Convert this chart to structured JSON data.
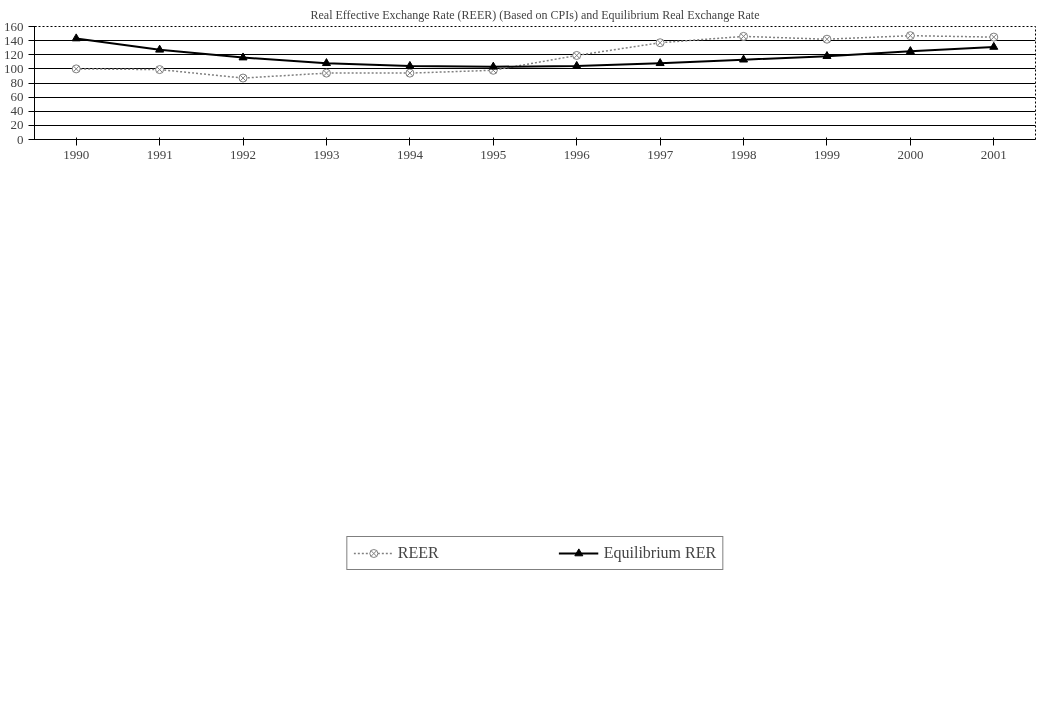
{
  "chart_data": {
    "type": "line",
    "title": "Real Effective Exchange Rate (REER) (Based on CPIs) and Equilibrium Real Exchange Rate",
    "categories": [
      "1990",
      "1991",
      "1992",
      "1993",
      "1994",
      "1995",
      "1996",
      "1997",
      "1998",
      "1999",
      "2000",
      "2001"
    ],
    "series": [
      {
        "name": "REER",
        "color": "#808080",
        "marker": "cross",
        "line_style": "dotted",
        "values": [
          100,
          99,
          87,
          94,
          94,
          98,
          119,
          137,
          146,
          142,
          147,
          145
        ]
      },
      {
        "name": "Equilibrium RER",
        "color": "#000000",
        "marker": "triangle",
        "line_style": "solid",
        "values": [
          143,
          127,
          116,
          108,
          104,
          103,
          104,
          108,
          113,
          118,
          125,
          131
        ]
      }
    ],
    "ylim": [
      0,
      160
    ],
    "yticks": [
      0,
      20,
      40,
      60,
      80,
      100,
      120,
      140,
      160
    ],
    "grid": "y",
    "legend": "bottom"
  }
}
